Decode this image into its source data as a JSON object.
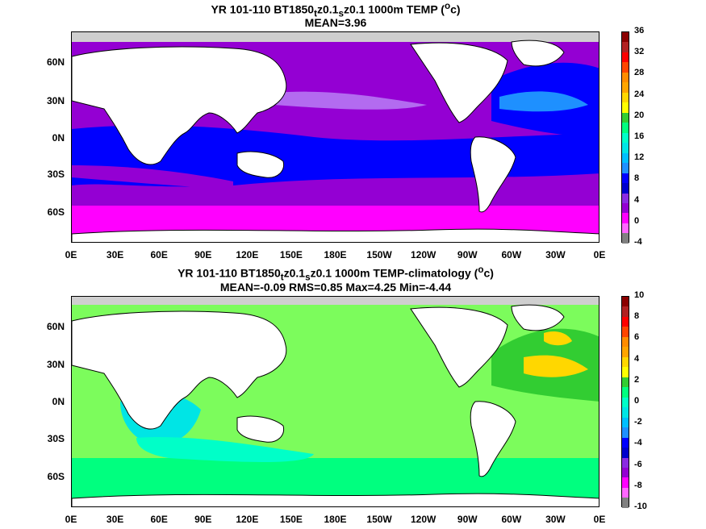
{
  "panels": [
    {
      "title_line1_a": "YR 101-110 BT1850",
      "title_line1_sub1": "t",
      "title_line1_b": "z0.1",
      "title_line1_sub2": "s",
      "title_line1_c": "z0.1 1000m TEMP (",
      "title_line1_sup": "o",
      "title_line1_d": "c)",
      "title_line2": "MEAN=3.96",
      "colorbar": {
        "labels": [
          "36",
          "32",
          "28",
          "24",
          "20",
          "16",
          "12",
          "8",
          "4",
          "0",
          "-4"
        ],
        "colors": [
          "#8b0000",
          "#b22222",
          "#ff0000",
          "#ff4500",
          "#ff8c00",
          "#ffa500",
          "#ffd700",
          "#ffff00",
          "#32cd32",
          "#00ff7f",
          "#00ffc8",
          "#00e5e5",
          "#00bfff",
          "#1e90ff",
          "#0000ff",
          "#0000cd",
          "#8a2be2",
          "#9400d3",
          "#ff00ff",
          "#ff66ff",
          "#808080"
        ]
      }
    },
    {
      "title_line1_a": "YR 101-110 BT1850",
      "title_line1_sub1": "t",
      "title_line1_b": "z0.1",
      "title_line1_sub2": "s",
      "title_line1_c": "z0.1 1000m TEMP-climatology (",
      "title_line1_sup": "o",
      "title_line1_d": "c)",
      "title_line2": "MEAN=-0.09   RMS=0.85   Max=4.25   Min=-4.44",
      "colorbar": {
        "labels": [
          "10",
          "8",
          "6",
          "4",
          "2",
          "0",
          "-2",
          "-4",
          "-6",
          "-8",
          "-10"
        ],
        "colors": [
          "#8b0000",
          "#b22222",
          "#ff0000",
          "#ff4500",
          "#ff8c00",
          "#ffa500",
          "#ffd700",
          "#ffff00",
          "#32cd32",
          "#00ff7f",
          "#00ffc8",
          "#00e5e5",
          "#00bfff",
          "#1e90ff",
          "#0000ff",
          "#0000cd",
          "#8a2be2",
          "#9400d3",
          "#ff00ff",
          "#ff66ff",
          "#808080"
        ]
      }
    }
  ],
  "lat_labels": [
    "60N",
    "30N",
    "0N",
    "30S",
    "60S"
  ],
  "lon_labels": [
    "0E",
    "30E",
    "60E",
    "90E",
    "120E",
    "150E",
    "180E",
    "150W",
    "120W",
    "90W",
    "60W",
    "30W",
    "0E"
  ]
}
